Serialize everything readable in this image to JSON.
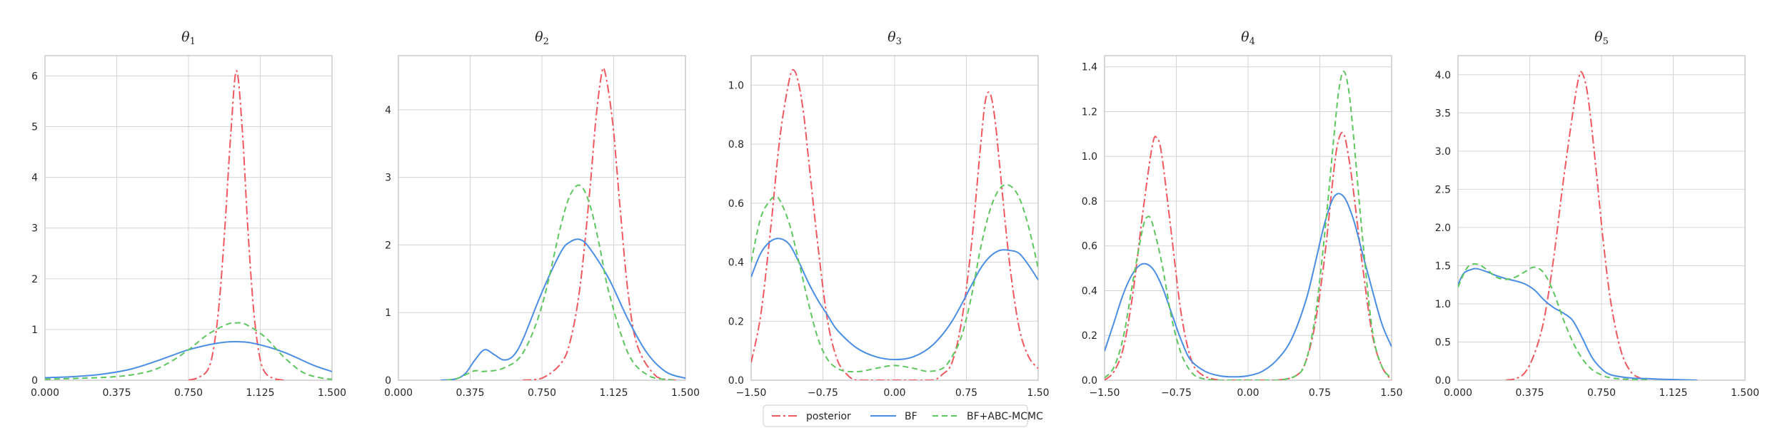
{
  "colors": {
    "posterior": "#f0585f",
    "BF": "#4a8ee4",
    "BF_ABC_MCMC": "#5ec65e",
    "grid": "#d4d4d4",
    "axes": "#bdbdbd"
  },
  "legend": {
    "placement": "bottom-center",
    "entries": [
      {
        "key": "posterior",
        "label": "posterior",
        "style": "dashdot"
      },
      {
        "key": "BF",
        "label": "BF",
        "style": "solid"
      },
      {
        "key": "BF_ABC_MCMC",
        "label": "BF+ABC-MCMC",
        "style": "dashed"
      }
    ]
  },
  "chart_data": [
    {
      "type": "line",
      "title_base": "θ",
      "title_sub": "1",
      "grid": true,
      "xlim": [
        0,
        1.5
      ],
      "ylim": [
        0,
        6.4
      ],
      "xticks": [
        "0.000",
        "0.375",
        "0.750",
        "1.125",
        "1.500"
      ],
      "yticks": [
        "0",
        "1",
        "2",
        "3",
        "4",
        "5",
        "6"
      ],
      "series": [
        {
          "key": "posterior",
          "x": [
            0.75,
            0.8,
            0.85,
            0.88,
            0.91,
            0.94,
            0.97,
            1.0,
            1.03,
            1.06,
            1.09,
            1.12,
            1.15,
            1.2,
            1.25
          ],
          "y": [
            0,
            0.05,
            0.2,
            0.6,
            1.5,
            3.0,
            4.8,
            6.1,
            5.0,
            3.0,
            1.4,
            0.5,
            0.15,
            0.03,
            0
          ]
        },
        {
          "key": "BF",
          "x": [
            0,
            0.15,
            0.3,
            0.45,
            0.6,
            0.75,
            0.9,
            1.0,
            1.1,
            1.25,
            1.4,
            1.5
          ],
          "y": [
            0.05,
            0.07,
            0.12,
            0.22,
            0.4,
            0.6,
            0.73,
            0.76,
            0.72,
            0.55,
            0.3,
            0.17
          ]
        },
        {
          "key": "BF_ABC_MCMC",
          "x": [
            0,
            0.2,
            0.4,
            0.55,
            0.65,
            0.75,
            0.85,
            0.95,
            1.0,
            1.05,
            1.15,
            1.25,
            1.35,
            1.45,
            1.5
          ],
          "y": [
            0.02,
            0.04,
            0.08,
            0.18,
            0.35,
            0.6,
            0.9,
            1.1,
            1.13,
            1.1,
            0.85,
            0.45,
            0.15,
            0.04,
            0.02
          ]
        }
      ]
    },
    {
      "type": "line",
      "title_base": "θ",
      "title_sub": "2",
      "grid": true,
      "xlim": [
        0,
        1.5
      ],
      "ylim": [
        0,
        4.8
      ],
      "xticks": [
        "0.000",
        "0.375",
        "0.750",
        "1.125",
        "1.500"
      ],
      "yticks": [
        "0",
        "1",
        "2",
        "3",
        "4"
      ],
      "series": [
        {
          "key": "posterior",
          "x": [
            0.65,
            0.75,
            0.85,
            0.9,
            0.95,
            1.0,
            1.03,
            1.06,
            1.08,
            1.12,
            1.16,
            1.2,
            1.25,
            1.35,
            1.45
          ],
          "y": [
            0,
            0.03,
            0.25,
            0.6,
            1.4,
            2.8,
            3.8,
            4.5,
            4.55,
            3.8,
            2.5,
            1.3,
            0.5,
            0.05,
            0
          ]
        },
        {
          "key": "BF",
          "x": [
            0.22,
            0.3,
            0.35,
            0.4,
            0.45,
            0.5,
            0.55,
            0.6,
            0.65,
            0.75,
            0.85,
            0.9,
            0.95,
            1.0,
            1.1,
            1.2,
            1.3,
            1.4,
            1.5
          ],
          "y": [
            0,
            0.02,
            0.1,
            0.3,
            0.45,
            0.38,
            0.3,
            0.36,
            0.6,
            1.3,
            1.9,
            2.05,
            2.08,
            1.95,
            1.5,
            0.9,
            0.4,
            0.12,
            0.03
          ]
        },
        {
          "key": "BF_ABC_MCMC",
          "x": [
            0.25,
            0.3,
            0.35,
            0.4,
            0.45,
            0.55,
            0.65,
            0.75,
            0.85,
            0.9,
            0.95,
            1.0,
            1.05,
            1.1,
            1.2,
            1.3,
            1.4,
            1.45
          ],
          "y": [
            0,
            0.02,
            0.08,
            0.14,
            0.13,
            0.18,
            0.4,
            1.1,
            2.3,
            2.75,
            2.88,
            2.6,
            2.0,
            1.3,
            0.4,
            0.08,
            0.01,
            0
          ]
        }
      ]
    },
    {
      "type": "line",
      "title_base": "θ",
      "title_sub": "3",
      "grid": true,
      "xlim": [
        -1.5,
        1.5
      ],
      "ylim": [
        0,
        1.1
      ],
      "xticks": [
        "−1.50",
        "−0.75",
        "0.00",
        "0.75",
        "1.50"
      ],
      "yticks": [
        "0.0",
        "0.2",
        "0.4",
        "0.6",
        "0.8",
        "1.0"
      ],
      "series": [
        {
          "key": "posterior",
          "x": [
            -1.5,
            -1.4,
            -1.3,
            -1.2,
            -1.1,
            -1.05,
            -1.0,
            -0.95,
            -0.9,
            -0.8,
            -0.7,
            -0.6,
            -0.5,
            -0.4,
            -0.2,
            0.0,
            0.2,
            0.4,
            0.5,
            0.6,
            0.7,
            0.8,
            0.9,
            0.95,
            1.0,
            1.05,
            1.1,
            1.2,
            1.3,
            1.4,
            1.5
          ],
          "y": [
            0.06,
            0.22,
            0.5,
            0.82,
            1.02,
            1.05,
            1.0,
            0.9,
            0.75,
            0.45,
            0.2,
            0.07,
            0.02,
            0,
            0,
            0,
            0,
            0,
            0.02,
            0.06,
            0.2,
            0.45,
            0.8,
            0.95,
            0.97,
            0.88,
            0.72,
            0.4,
            0.18,
            0.08,
            0.04
          ]
        },
        {
          "key": "BF",
          "x": [
            -1.5,
            -1.4,
            -1.3,
            -1.2,
            -1.1,
            -1.0,
            -0.9,
            -0.8,
            -0.7,
            -0.6,
            -0.4,
            -0.2,
            0.0,
            0.2,
            0.4,
            0.6,
            0.8,
            0.9,
            1.0,
            1.1,
            1.2,
            1.3,
            1.4,
            1.5
          ],
          "y": [
            0.35,
            0.43,
            0.47,
            0.48,
            0.46,
            0.4,
            0.33,
            0.27,
            0.22,
            0.17,
            0.11,
            0.08,
            0.07,
            0.08,
            0.12,
            0.2,
            0.32,
            0.38,
            0.42,
            0.44,
            0.44,
            0.43,
            0.39,
            0.34
          ]
        },
        {
          "key": "BF_ABC_MCMC",
          "x": [
            -1.5,
            -1.4,
            -1.3,
            -1.25,
            -1.2,
            -1.1,
            -1.0,
            -0.9,
            -0.8,
            -0.7,
            -0.6,
            -0.5,
            -0.35,
            -0.2,
            0.0,
            0.2,
            0.35,
            0.5,
            0.6,
            0.7,
            0.8,
            0.9,
            1.0,
            1.1,
            1.2,
            1.3,
            1.4,
            1.5
          ],
          "y": [
            0.4,
            0.55,
            0.61,
            0.62,
            0.61,
            0.53,
            0.4,
            0.26,
            0.14,
            0.07,
            0.04,
            0.03,
            0.03,
            0.04,
            0.05,
            0.04,
            0.03,
            0.04,
            0.08,
            0.15,
            0.28,
            0.45,
            0.58,
            0.65,
            0.66,
            0.62,
            0.52,
            0.38
          ]
        }
      ]
    },
    {
      "type": "line",
      "title_base": "θ",
      "title_sub": "4",
      "grid": true,
      "xlim": [
        -1.5,
        1.5
      ],
      "ylim": [
        0,
        1.45
      ],
      "xticks": [
        "−1.50",
        "−0.75",
        "0.00",
        "0.75",
        "1.50"
      ],
      "yticks": [
        "0.0",
        "0.2",
        "0.4",
        "0.6",
        "0.8",
        "1.0",
        "1.2",
        "1.4"
      ],
      "series": [
        {
          "key": "posterior",
          "x": [
            -1.5,
            -1.4,
            -1.3,
            -1.2,
            -1.1,
            -1.0,
            -0.95,
            -0.9,
            -0.8,
            -0.7,
            -0.6,
            -0.5,
            -0.3,
            0.0,
            0.3,
            0.5,
            0.6,
            0.7,
            0.8,
            0.9,
            0.95,
            1.0,
            1.05,
            1.1,
            1.2,
            1.3,
            1.4,
            1.5
          ],
          "y": [
            0,
            0.04,
            0.15,
            0.4,
            0.75,
            1.05,
            1.08,
            1.0,
            0.65,
            0.3,
            0.1,
            0.03,
            0,
            0,
            0,
            0.02,
            0.08,
            0.25,
            0.55,
            0.95,
            1.08,
            1.1,
            1.0,
            0.85,
            0.5,
            0.2,
            0.06,
            0
          ]
        },
        {
          "key": "BF",
          "x": [
            -1.5,
            -1.4,
            -1.3,
            -1.2,
            -1.1,
            -1.0,
            -0.9,
            -0.8,
            -0.7,
            -0.6,
            -0.45,
            -0.3,
            -0.15,
            0.0,
            0.15,
            0.3,
            0.45,
            0.6,
            0.7,
            0.8,
            0.9,
            1.0,
            1.1,
            1.2,
            1.3,
            1.4,
            1.5
          ],
          "y": [
            0.13,
            0.26,
            0.39,
            0.48,
            0.52,
            0.5,
            0.42,
            0.3,
            0.18,
            0.09,
            0.04,
            0.02,
            0.015,
            0.02,
            0.04,
            0.09,
            0.18,
            0.35,
            0.52,
            0.7,
            0.82,
            0.82,
            0.72,
            0.56,
            0.4,
            0.25,
            0.15
          ]
        },
        {
          "key": "BF_ABC_MCMC",
          "x": [
            -1.5,
            -1.4,
            -1.3,
            -1.2,
            -1.1,
            -1.05,
            -1.0,
            -0.9,
            -0.8,
            -0.7,
            -0.6,
            -0.5,
            -0.3,
            0.0,
            0.3,
            0.5,
            0.6,
            0.7,
            0.8,
            0.9,
            0.95,
            1.0,
            1.05,
            1.1,
            1.2,
            1.3,
            1.4,
            1.5
          ],
          "y": [
            0.01,
            0.06,
            0.2,
            0.45,
            0.68,
            0.73,
            0.7,
            0.52,
            0.28,
            0.12,
            0.04,
            0.01,
            0,
            0,
            0,
            0.02,
            0.08,
            0.28,
            0.65,
            1.1,
            1.3,
            1.38,
            1.3,
            1.1,
            0.62,
            0.22,
            0.06,
            0.01
          ]
        }
      ]
    },
    {
      "type": "line",
      "title_base": "θ",
      "title_sub": "5",
      "grid": true,
      "xlim": [
        0,
        1.5
      ],
      "ylim": [
        0,
        4.25
      ],
      "xticks": [
        "0.000",
        "0.375",
        "0.750",
        "1.125",
        "1.500"
      ],
      "yticks": [
        "0.0",
        "0.5",
        "1.0",
        "1.5",
        "2.0",
        "2.5",
        "3.0",
        "3.5",
        "4.0"
      ],
      "series": [
        {
          "key": "posterior",
          "x": [
            0.25,
            0.3,
            0.35,
            0.4,
            0.45,
            0.5,
            0.55,
            0.6,
            0.63,
            0.65,
            0.68,
            0.72,
            0.76,
            0.8,
            0.85,
            0.9,
            0.95,
            1.0
          ],
          "y": [
            0,
            0.02,
            0.1,
            0.35,
            0.8,
            1.6,
            2.6,
            3.5,
            3.95,
            4.02,
            3.7,
            2.8,
            1.8,
            1.0,
            0.4,
            0.12,
            0.03,
            0
          ]
        },
        {
          "key": "BF",
          "x": [
            0,
            0.03,
            0.07,
            0.1,
            0.15,
            0.2,
            0.25,
            0.3,
            0.35,
            0.4,
            0.45,
            0.5,
            0.55,
            0.6,
            0.65,
            0.7,
            0.75,
            0.8,
            0.9,
            1.0,
            1.1,
            1.25
          ],
          "y": [
            1.25,
            1.4,
            1.45,
            1.46,
            1.42,
            1.37,
            1.33,
            1.3,
            1.26,
            1.18,
            1.05,
            0.95,
            0.88,
            0.78,
            0.55,
            0.3,
            0.15,
            0.07,
            0.03,
            0.02,
            0.01,
            0
          ]
        },
        {
          "key": "BF_ABC_MCMC",
          "x": [
            0,
            0.05,
            0.1,
            0.15,
            0.2,
            0.25,
            0.3,
            0.35,
            0.4,
            0.45,
            0.5,
            0.55,
            0.6,
            0.65,
            0.7,
            0.75,
            0.8,
            0.9,
            1.0
          ],
          "y": [
            1.22,
            1.48,
            1.52,
            1.45,
            1.35,
            1.32,
            1.35,
            1.42,
            1.48,
            1.4,
            1.15,
            0.8,
            0.5,
            0.28,
            0.14,
            0.07,
            0.03,
            0.01,
            0
          ]
        }
      ]
    }
  ]
}
